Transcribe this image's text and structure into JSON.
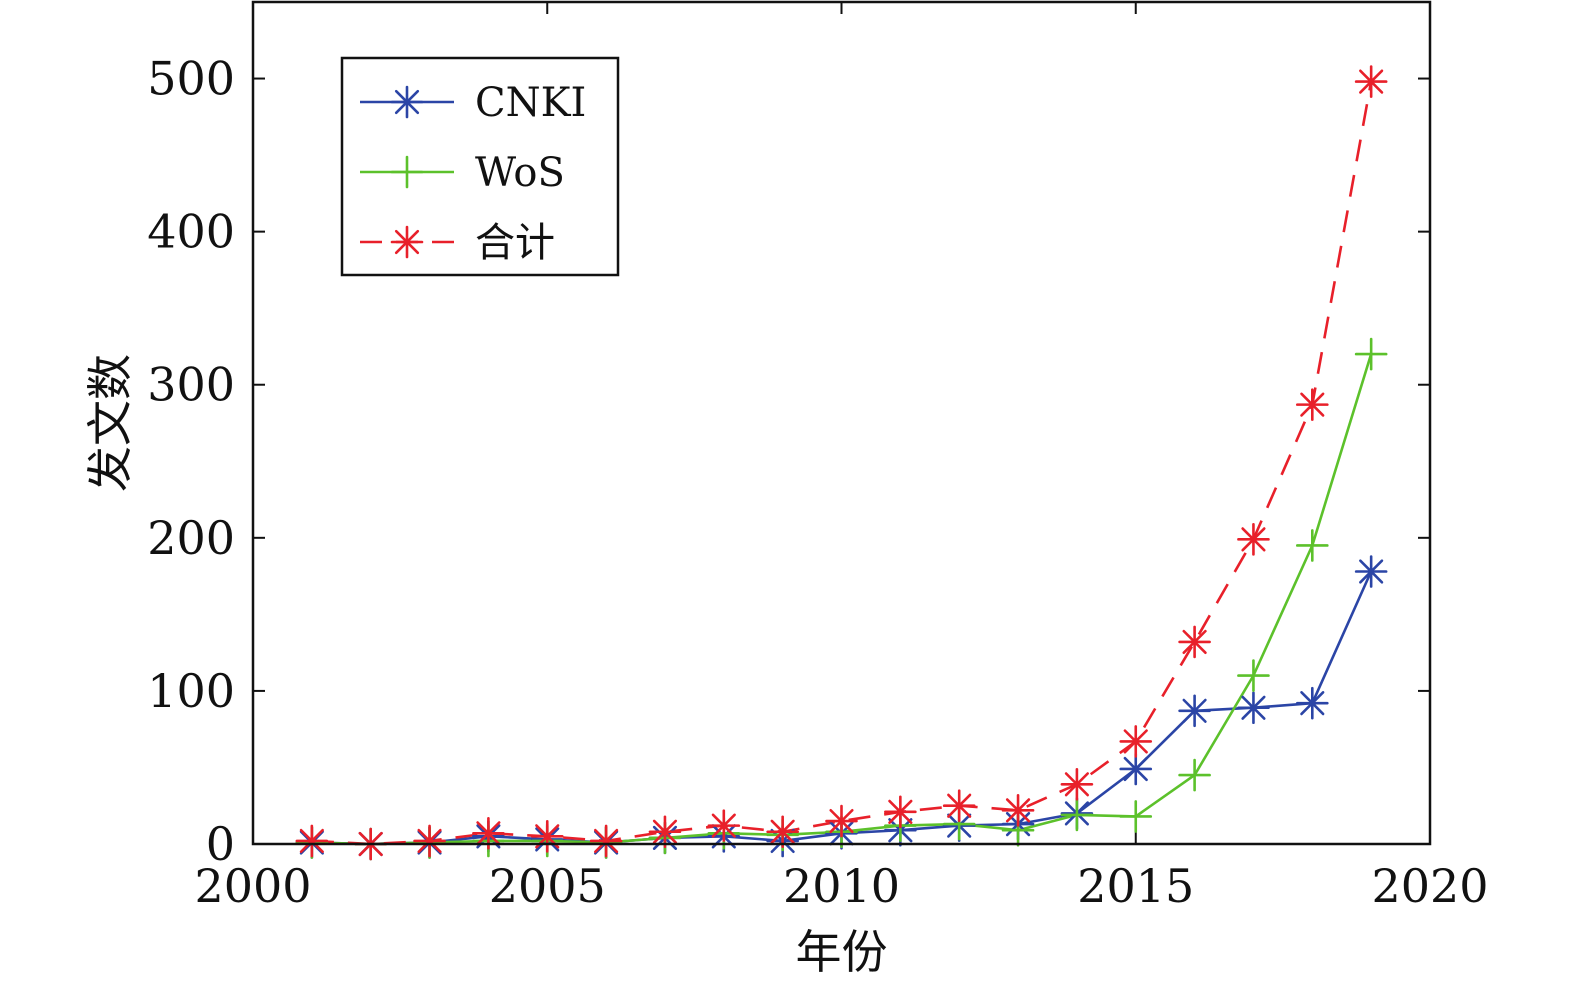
{
  "chart_data": {
    "type": "line",
    "xlabel": "年份",
    "ylabel": "发文数",
    "xlim": [
      2000,
      2020
    ],
    "ylim": [
      0,
      550
    ],
    "xticks": [
      2000,
      2005,
      2010,
      2015,
      2020
    ],
    "yticks": [
      0,
      100,
      200,
      300,
      400,
      500
    ],
    "x": [
      2001,
      2002,
      2003,
      2004,
      2005,
      2006,
      2007,
      2008,
      2009,
      2010,
      2011,
      2012,
      2013,
      2014,
      2015,
      2016,
      2017,
      2018,
      2019
    ],
    "legend_position": "top-left",
    "grid": false,
    "series": [
      {
        "name": "CNKI",
        "color": "#2b45a6",
        "marker": "asterisk",
        "dash": "solid",
        "values": [
          1,
          0,
          1,
          5,
          3,
          1,
          4,
          5,
          2,
          7,
          9,
          12,
          13,
          20,
          49,
          87,
          89,
          92,
          178
        ]
      },
      {
        "name": "WoS",
        "color": "#5cc12b",
        "marker": "plus",
        "dash": "solid",
        "values": [
          1,
          0,
          1,
          2,
          2,
          1,
          4,
          7,
          6,
          8,
          12,
          13,
          9,
          19,
          18,
          45,
          110,
          195,
          320
        ]
      },
      {
        "name": "合计",
        "color": "#e8202a",
        "marker": "asterisk",
        "dash": "dashed",
        "values": [
          2,
          0,
          2,
          7,
          5,
          2,
          8,
          12,
          8,
          15,
          21,
          25,
          22,
          39,
          67,
          132,
          199,
          287,
          498
        ]
      }
    ]
  }
}
